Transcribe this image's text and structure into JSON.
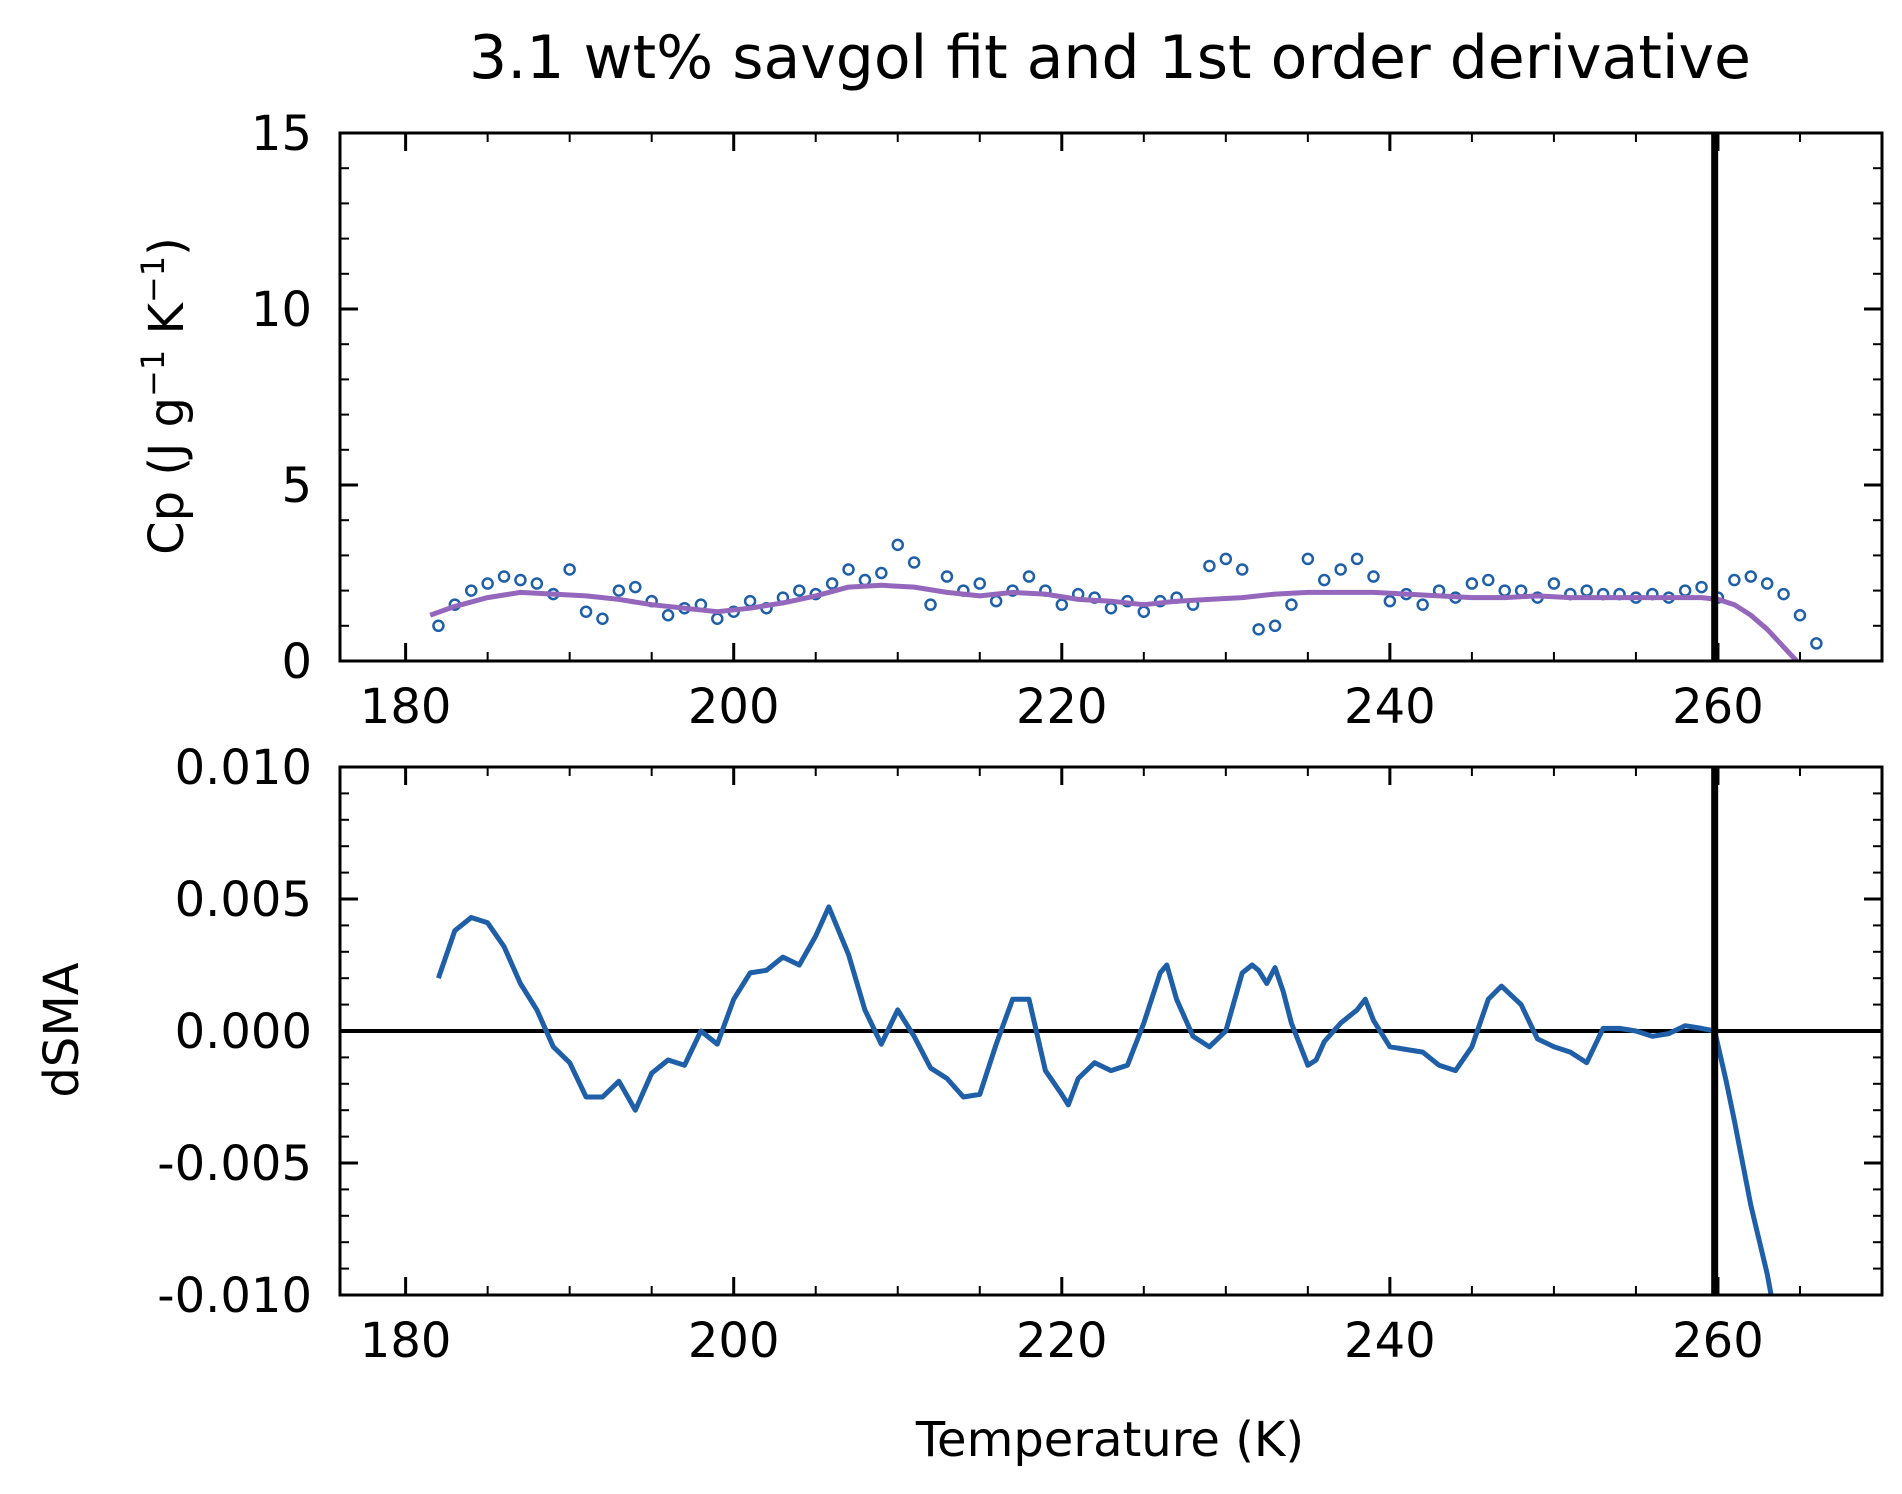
{
  "chart_data": {
    "title": "3.1 wt% savgol fit and 1st order derivative",
    "subplots": [
      {
        "type": "scatter",
        "ylabel_parts": [
          "Cp (J g",
          "−1",
          " K",
          "−1",
          ")"
        ],
        "xlim": [
          176,
          270
        ],
        "ylim": [
          0,
          15
        ],
        "xticks": [
          "180",
          "200",
          "220",
          "240",
          "260"
        ],
        "xtick_values": [
          180,
          200,
          220,
          240,
          260
        ],
        "yticks": [
          "0",
          "5",
          "10",
          "15"
        ],
        "ytick_values": [
          0,
          5,
          10,
          15
        ],
        "grid": false,
        "vertical_line_x": 259.8,
        "series": [
          {
            "kind": "scatter",
            "color": "#1f5fa8",
            "x": [
              182,
              183,
              184,
              185,
              186,
              187,
              188,
              189,
              190,
              191,
              192,
              193,
              194,
              195,
              196,
              197,
              198,
              199,
              200,
              201,
              202,
              203,
              204,
              205,
              206,
              207,
              208,
              209,
              210,
              211,
              212,
              213,
              214,
              215,
              216,
              217,
              218,
              219,
              220,
              221,
              222,
              223,
              224,
              225,
              226,
              227,
              228,
              229,
              230,
              231,
              232,
              233,
              234,
              235,
              236,
              237,
              238,
              239,
              240,
              241,
              242,
              243,
              244,
              245,
              246,
              247,
              248,
              249,
              250,
              251,
              252,
              253,
              254,
              255,
              256,
              257,
              258,
              259,
              260,
              261,
              262,
              263,
              264,
              265,
              266
            ],
            "y": [
              1.0,
              1.6,
              2.0,
              2.2,
              2.4,
              2.3,
              2.2,
              1.9,
              2.6,
              1.4,
              1.2,
              2.0,
              2.1,
              1.7,
              1.3,
              1.5,
              1.6,
              1.2,
              1.4,
              1.7,
              1.5,
              1.8,
              2.0,
              1.9,
              2.2,
              2.6,
              2.3,
              2.5,
              3.3,
              2.8,
              1.6,
              2.4,
              2.0,
              2.2,
              1.7,
              2.0,
              2.4,
              2.0,
              1.6,
              1.9,
              1.8,
              1.5,
              1.7,
              1.4,
              1.7,
              1.8,
              1.6,
              2.7,
              2.9,
              2.6,
              0.9,
              1.0,
              1.6,
              2.9,
              2.3,
              2.6,
              2.9,
              2.4,
              1.7,
              1.9,
              1.6,
              2.0,
              1.8,
              2.2,
              2.3,
              2.0,
              2.0,
              1.8,
              2.2,
              1.9,
              2.0,
              1.9,
              1.9,
              1.8,
              1.9,
              1.8,
              2.0,
              2.1,
              1.8,
              2.3,
              2.4,
              2.2,
              1.9,
              1.3,
              0.5
            ]
          },
          {
            "kind": "line",
            "color": "#9467bd",
            "x": [
              181.5,
              183,
              185,
              187,
              189,
              191,
              193,
              195,
              197,
              199,
              201,
              203,
              205,
              207,
              209,
              211,
              213,
              215,
              217,
              219,
              221,
              223,
              225,
              227,
              229,
              231,
              233,
              235,
              237,
              239,
              241,
              243,
              245,
              247,
              249,
              251,
              253,
              255,
              257,
              259,
              260,
              261,
              262,
              263,
              264,
              264.8
            ],
            "y": [
              1.3,
              1.55,
              1.8,
              1.95,
              1.9,
              1.85,
              1.75,
              1.6,
              1.5,
              1.4,
              1.5,
              1.65,
              1.85,
              2.1,
              2.15,
              2.1,
              1.95,
              1.85,
              1.95,
              1.9,
              1.75,
              1.7,
              1.6,
              1.7,
              1.75,
              1.8,
              1.9,
              1.95,
              1.95,
              1.95,
              1.9,
              1.85,
              1.8,
              1.8,
              1.85,
              1.8,
              1.8,
              1.8,
              1.8,
              1.8,
              1.75,
              1.6,
              1.3,
              0.9,
              0.4,
              0.0
            ]
          }
        ]
      },
      {
        "type": "line",
        "ylabel": "dSMA",
        "xlabel": "Temperature (K)",
        "xlim": [
          176,
          270
        ],
        "ylim": [
          -0.01,
          0.01
        ],
        "xticks": [
          "180",
          "200",
          "220",
          "240",
          "260"
        ],
        "xtick_values": [
          180,
          200,
          220,
          240,
          260
        ],
        "yticks": [
          "-0.010",
          "-0.005",
          "0.000",
          "0.005",
          "0.010"
        ],
        "ytick_values": [
          -0.01,
          -0.005,
          0,
          0.005,
          0.01
        ],
        "grid": false,
        "vertical_line_x": 259.8,
        "horizontal_line_y": 0,
        "series": [
          {
            "kind": "line",
            "color": "#1f5fa8",
            "x": [
              182,
              183,
              184,
              185,
              186,
              187,
              188,
              189,
              190,
              191,
              192,
              193,
              194,
              195,
              196,
              197,
              198,
              199,
              200,
              201,
              202,
              203,
              204,
              205,
              205.8,
              207,
              208,
              209,
              210,
              211,
              212,
              213,
              214,
              215,
              216,
              217,
              218,
              219,
              220,
              220.4,
              221,
              222,
              223,
              224,
              225,
              226,
              226.4,
              227,
              228,
              229,
              230,
              231,
              231.6,
              232,
              232.5,
              233,
              233.5,
              234,
              235,
              235.5,
              236,
              237,
              238,
              238.5,
              239,
              240,
              241,
              242,
              243,
              244,
              245,
              246,
              246.8,
              248,
              249,
              250,
              251,
              252,
              253,
              254,
              255,
              256,
              257,
              258,
              259,
              259.8,
              260.5,
              261,
              262,
              263,
              263.3
            ],
            "y": [
              0.002,
              0.0038,
              0.0043,
              0.0041,
              0.0032,
              0.0018,
              0.0008,
              -0.0006,
              -0.0012,
              -0.0025,
              -0.0025,
              -0.0019,
              -0.003,
              -0.0016,
              -0.0011,
              -0.0013,
              0.0,
              -0.0005,
              0.0012,
              0.0022,
              0.0023,
              0.0028,
              0.0025,
              0.0036,
              0.0047,
              0.0029,
              0.0008,
              -0.0005,
              0.0008,
              -0.0002,
              -0.0014,
              -0.0018,
              -0.0025,
              -0.0024,
              -0.0005,
              0.0012,
              0.0012,
              -0.0015,
              -0.0024,
              -0.0028,
              -0.0018,
              -0.0012,
              -0.0015,
              -0.0013,
              0.0003,
              0.0022,
              0.0025,
              0.0012,
              -0.0002,
              -0.0006,
              0.0,
              0.0022,
              0.0025,
              0.0023,
              0.0018,
              0.0024,
              0.0015,
              0.0003,
              -0.0013,
              -0.0011,
              -0.0004,
              0.0003,
              0.0008,
              0.0012,
              0.0004,
              -0.0006,
              -0.0007,
              -0.0008,
              -0.0013,
              -0.0015,
              -0.0006,
              0.0012,
              0.0017,
              0.001,
              -0.0003,
              -0.0006,
              -0.0008,
              -0.0012,
              0.0001,
              0.0001,
              0.0,
              -0.0002,
              -0.0001,
              0.0002,
              0.0001,
              0.0,
              -0.0019,
              -0.0034,
              -0.0066,
              -0.0092,
              -0.0102
            ]
          }
        ]
      }
    ]
  }
}
